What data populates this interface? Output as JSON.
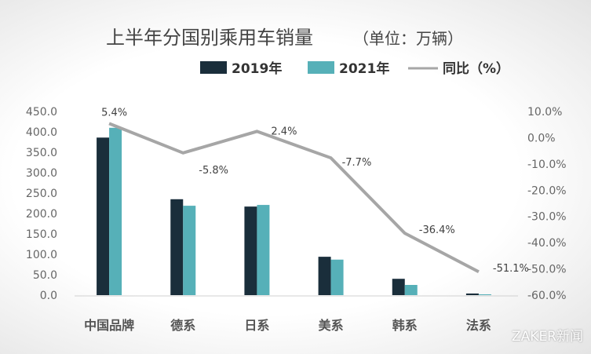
{
  "chart_data": {
    "type": "bar+line",
    "title": "上半年分国别乘用车销量",
    "subtitle": "（单位：万辆）",
    "categories": [
      "中国品牌",
      "德系",
      "日系",
      "美系",
      "韩系",
      "法系"
    ],
    "series": [
      {
        "name": "2019年",
        "type": "bar",
        "axis": "left",
        "color": "#1a2e3b",
        "values": [
          386,
          235,
          217,
          94,
          40,
          4
        ]
      },
      {
        "name": "2021年",
        "type": "bar",
        "axis": "left",
        "color": "#56b0b8",
        "values": [
          410,
          219,
          221,
          87,
          25,
          2
        ]
      },
      {
        "name": "同比（%）",
        "type": "line",
        "axis": "right",
        "color": "#a6a6a6",
        "values": [
          5.4,
          -5.8,
          2.4,
          -7.7,
          -36.4,
          -51.1
        ],
        "labels": [
          "5.4%",
          "-5.8%",
          "2.4%",
          "-7.7%",
          "-36.4%",
          "-51.1%"
        ]
      }
    ],
    "ylim": [
      0,
      450
    ],
    "yticks": [
      "0.0",
      "50.0",
      "100.0",
      "150.0",
      "200.0",
      "250.0",
      "300.0",
      "350.0",
      "400.0",
      "450.0"
    ],
    "y2lim": [
      -60,
      10
    ],
    "y2ticks": [
      "-60.0%",
      "-50.0%",
      "-40.0%",
      "-30.0%",
      "-20.0%",
      "-10.0%",
      "0.0%",
      "10.0%"
    ],
    "legend": "top",
    "grid": false
  },
  "watermark": "ZAKER新闻"
}
